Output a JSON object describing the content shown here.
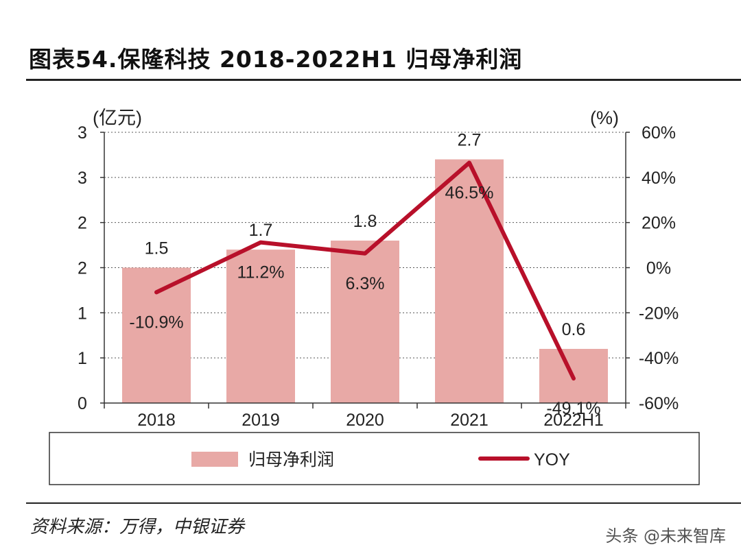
{
  "header": {
    "title": "图表54.保隆科技 2018-2022H1 归母净利润"
  },
  "footer": {
    "source": "资料来源：万得，中银证券",
    "watermark": "头条 @未来智库"
  },
  "chart_data": {
    "type": "bar",
    "title": "图表54.保隆科技 2018-2022H1 归母净利润",
    "categories": [
      "2018",
      "2019",
      "2020",
      "2021",
      "2022H1"
    ],
    "series": [
      {
        "name": "归母净利润",
        "type": "bar",
        "axis": "left",
        "values": [
          1.5,
          1.7,
          1.8,
          2.7,
          0.6
        ],
        "data_labels": [
          "1.5",
          "1.7",
          "1.8",
          "2.7",
          "0.6"
        ],
        "color": "#e8a9a6"
      },
      {
        "name": "YOY",
        "type": "line",
        "axis": "right",
        "values": [
          -10.9,
          11.2,
          6.3,
          46.5,
          -49.1
        ],
        "data_labels": [
          "-10.9%",
          "11.2%",
          "6.3%",
          "46.5%",
          "-49.1%"
        ],
        "color": "#b8102a"
      }
    ],
    "left_axis": {
      "label": "(亿元)",
      "ylim": [
        0,
        3
      ],
      "tick_labels": [
        "0",
        "1",
        "1",
        "2",
        "2",
        "3",
        "3"
      ]
    },
    "right_axis": {
      "label": "(%)",
      "ylim": [
        -60,
        60
      ],
      "tick_labels": [
        "-60%",
        "-40%",
        "-20%",
        "0%",
        "20%",
        "40%",
        "60%"
      ]
    },
    "grid": "horizontal dotted",
    "legend": "bottom"
  }
}
